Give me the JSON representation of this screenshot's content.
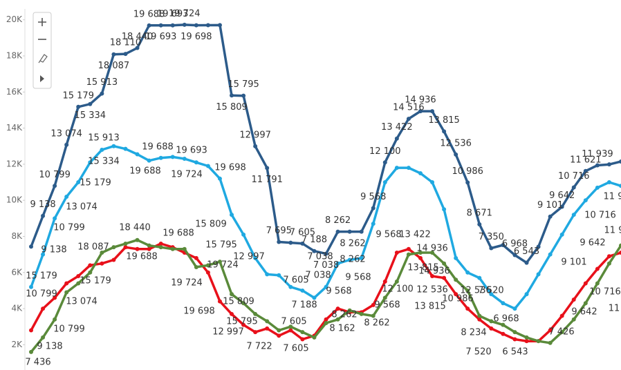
{
  "chart_data": {
    "type": "line",
    "categories": [
      null,
      null,
      null,
      null,
      null,
      null,
      null,
      null,
      null,
      null,
      null,
      null,
      null,
      null,
      null,
      null,
      null,
      null,
      null,
      null,
      null,
      null,
      null,
      null,
      null,
      null,
      null,
      null,
      null,
      null,
      null,
      null,
      null,
      null,
      null,
      null,
      null,
      null,
      null,
      null,
      null,
      null,
      null,
      null,
      null,
      null,
      null,
      null,
      null,
      null,
      null
    ],
    "ylim": [
      600,
      20600
    ],
    "yticks": [
      {
        "value": 2000,
        "label": "2K"
      },
      {
        "value": 4000,
        "label": "4K"
      },
      {
        "value": 6000,
        "label": "6K"
      },
      {
        "value": 8000,
        "label": "8K"
      },
      {
        "value": 10000,
        "label": "10K"
      },
      {
        "value": 12000,
        "label": "12K"
      },
      {
        "value": 14000,
        "label": "14K"
      },
      {
        "value": 16000,
        "label": "16K"
      },
      {
        "value": 18000,
        "label": "18K"
      },
      {
        "value": 20000,
        "label": "20K"
      }
    ],
    "series": [
      {
        "color": "#1fa9e1",
        "values": [
          5200,
          7000,
          9000,
          10200,
          11000,
          12100,
          12800,
          13000,
          12850,
          12550,
          12200,
          12350,
          12400,
          12300,
          12100,
          11900,
          11200,
          9200,
          8100,
          6800,
          5900,
          5850,
          5200,
          5000,
          4600,
          5200,
          6500,
          6700,
          6800,
          8700,
          11000,
          11800,
          11800,
          11500,
          11000,
          9500,
          6800,
          6000,
          5700,
          4800,
          4300,
          4000,
          4800,
          5900,
          7000,
          8100,
          9200,
          10000,
          10700,
          11000,
          10800
        ]
      },
      {
        "color": "#e8101a",
        "values": [
          2800,
          4000,
          4600,
          5400,
          5800,
          6400,
          6500,
          6700,
          7400,
          7300,
          7300,
          7600,
          7400,
          7100,
          6800,
          6000,
          4400,
          3700,
          3100,
          2700,
          2900,
          2500,
          2800,
          2300,
          2500,
          3400,
          4000,
          3800,
          3800,
          4200,
          5500,
          7100,
          7300,
          6800,
          5800,
          5700,
          4800,
          4000,
          3400,
          2900,
          2600,
          2300,
          2200,
          2200,
          2800,
          3600,
          4500,
          5400,
          6200,
          6900,
          7100
        ]
      },
      {
        "color": "#5a8a3a",
        "values": [
          1600,
          2400,
          3400,
          4900,
          5400,
          6000,
          7100,
          7400,
          7600,
          7800,
          7500,
          7400,
          7300,
          7300,
          6300,
          6400,
          6600,
          4800,
          4300,
          3700,
          3300,
          2800,
          3000,
          2700,
          2400,
          3200,
          3400,
          3900,
          3700,
          3600,
          4600,
          5500,
          7000,
          7100,
          7100,
          6500,
          5600,
          5000,
          3600,
          3300,
          3100,
          2700,
          2400,
          2200,
          2100,
          2700,
          3400,
          4300,
          5400,
          6500,
          7500
        ]
      },
      {
        "color": "#2c5b8a",
        "values": [
          7436,
          9138,
          10799,
          13074,
          15179,
          15334,
          15913,
          18087,
          18110,
          18440,
          19688,
          19693,
          19693,
          19724,
          19698,
          19700,
          19705,
          15809,
          15795,
          12997,
          11791,
          7695,
          7650,
          7605,
          7188,
          7038,
          8262,
          8262,
          8262,
          9568,
          12100,
          13422,
          14516,
          14936,
          14936,
          13815,
          12536,
          10986,
          8671,
          7350,
          7520,
          6968,
          6543,
          7426,
          9101,
          9642,
          10716,
          11621,
          11939,
          11990,
          12150
        ],
        "value_labels": [
          null,
          "9 138",
          "10 799",
          "13 074",
          "15 179",
          "15 334",
          "15 913",
          "18 087",
          "18 110",
          "18 440",
          "19 688",
          "19 693",
          "19 693",
          "19 724",
          "19 698",
          null,
          null,
          "15 809",
          "15 795",
          "12 997",
          "11 791",
          "7 695",
          null,
          "7 605",
          "7 188",
          "7 038",
          "8 262",
          null,
          null,
          "9 568",
          "12 100",
          "13 422",
          "14 516",
          "14 936",
          null,
          "13 815",
          "12 536",
          "10 986",
          "8 671",
          "7 350",
          null,
          "6 968",
          "6 543",
          null,
          "9 101",
          "9 642",
          "10 716",
          "11 621",
          "11 939",
          null,
          null
        ]
      }
    ],
    "annotations": [
      "15 913",
      "15 334",
      "15 179",
      "13 074",
      "10 799",
      "9 138",
      "19 688",
      "19 688",
      "19 693",
      "19 724",
      "19 698",
      "15 809",
      "15 795",
      "12 997",
      "7 605",
      "7 188",
      "7 038",
      "7 038",
      "8 262",
      "8 262",
      "9 568",
      "9 568",
      "13 422",
      "14 936",
      "13 815",
      "12 536",
      "10 986",
      "7 520",
      "18 440",
      "19 688",
      "19 688",
      "18 087",
      "15 179",
      "15 179",
      "10 799",
      "13 074",
      "10 799",
      "9 138",
      "7 436",
      "19 724",
      "19 724",
      "15 809",
      "15 795",
      "19 698",
      "12 997",
      "7 722",
      "7 605",
      "7 605",
      "9 568",
      "8 262",
      "8 162",
      "8 262",
      "9 568",
      "12 100",
      "14 936",
      "13 815",
      "12 536",
      "6 968",
      "8 234",
      "7 520",
      "6 543",
      "7 426",
      "9 642",
      "10 716",
      "11",
      "11 9",
      "9 101",
      "10 716",
      "9 642",
      "11 9"
    ]
  }
}
